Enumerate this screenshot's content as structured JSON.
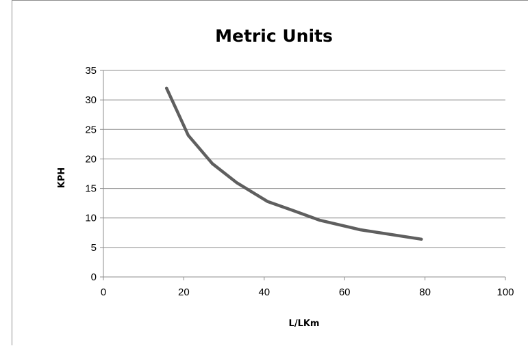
{
  "chart_data": {
    "type": "line",
    "title": "Metric Units",
    "xlabel": "L/LKm",
    "ylabel": "KPH",
    "xlim": [
      0,
      100
    ],
    "ylim": [
      0,
      35
    ],
    "x_ticks": [
      0,
      20,
      40,
      60,
      80,
      100
    ],
    "y_ticks": [
      0,
      5,
      10,
      15,
      20,
      25,
      30,
      35
    ],
    "grid": "horizontal",
    "legend": "none",
    "series": [
      {
        "color": "#5f5f5f",
        "x": [
          15.7,
          21.1,
          27.1,
          33.1,
          40.8,
          47.0,
          53.9,
          63.9,
          79.1
        ],
        "y": [
          32.0,
          24.0,
          19.2,
          16.0,
          12.8,
          11.3,
          9.6,
          8.0,
          6.4
        ]
      }
    ]
  }
}
